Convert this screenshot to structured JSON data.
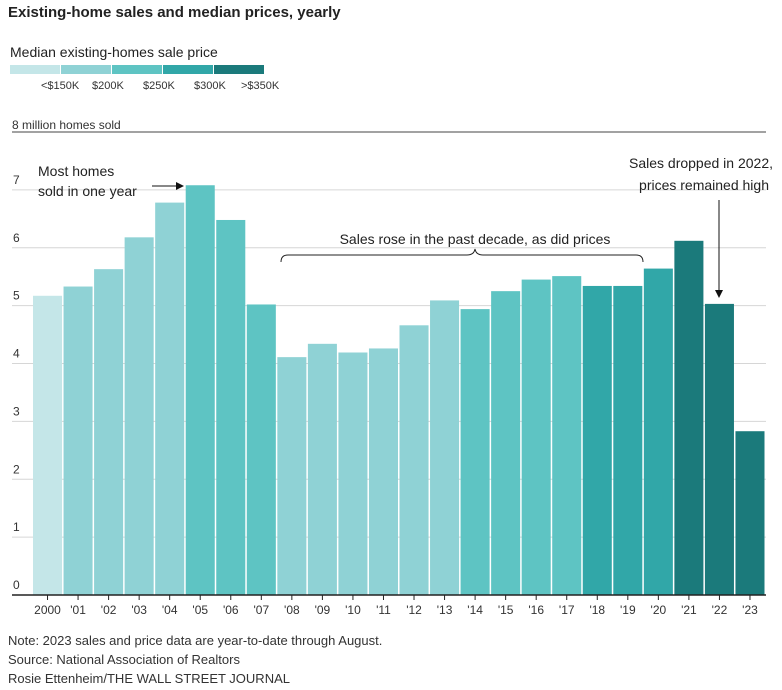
{
  "title": "Existing-home sales and median prices, yearly",
  "legend": {
    "title": "Median existing-homes sale price",
    "items": [
      {
        "label": "<$150K",
        "color": "#c4e6e8"
      },
      {
        "label": "$200K",
        "color": "#8fd2d5"
      },
      {
        "label": "$250K",
        "color": "#5ec4c3"
      },
      {
        "label": "$300K",
        "color": "#31a7a8"
      },
      {
        "label": ">$350K",
        "color": "#1b7a7b"
      }
    ]
  },
  "chart_data": {
    "type": "bar",
    "ylabel": "8 million homes sold",
    "ylim": [
      0,
      8
    ],
    "yticks": [
      "0",
      "1",
      "2",
      "3",
      "4",
      "5",
      "6",
      "7"
    ],
    "categories": [
      "2000",
      "'01",
      "'02",
      "'03",
      "'04",
      "'05",
      "'06",
      "'07",
      "'08",
      "'09",
      "'10",
      "'11",
      "'12",
      "'13",
      "'14",
      "'15",
      "'16",
      "'17",
      "'18",
      "'19",
      "'20",
      "'21",
      "'22",
      "'23"
    ],
    "values": [
      5.17,
      5.33,
      5.63,
      6.18,
      6.78,
      7.08,
      6.48,
      5.02,
      4.11,
      4.34,
      4.19,
      4.26,
      4.66,
      5.09,
      4.94,
      5.25,
      5.45,
      5.51,
      5.34,
      5.34,
      5.64,
      6.12,
      5.03,
      2.83
    ],
    "price_bins": [
      0,
      1,
      1,
      1,
      1,
      2,
      2,
      2,
      1,
      1,
      1,
      1,
      1,
      1,
      2,
      2,
      2,
      2,
      3,
      3,
      3,
      4,
      4,
      4
    ],
    "annotations": {
      "peak_line1": "Most homes",
      "peak_line2": "sold in one year",
      "decade": "Sales rose in the past decade, as did prices",
      "drop_line1": "Sales dropped in 2022,",
      "drop_line2": "prices remained high"
    }
  },
  "footer": {
    "note": "Note: 2023 sales and price data are year-to-date through August.",
    "source": "Source: National Association of Realtors",
    "credit": "Rosie Ettenheim/THE WALL STREET JOURNAL"
  }
}
